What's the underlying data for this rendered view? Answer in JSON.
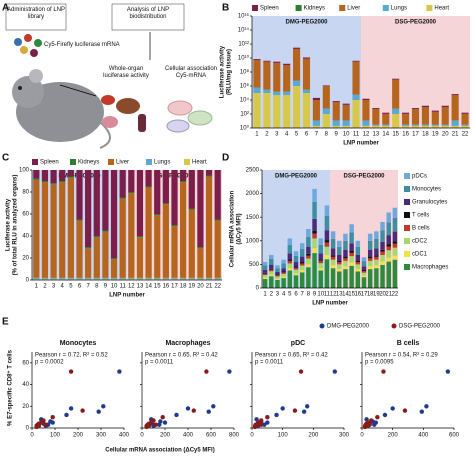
{
  "diagram": {
    "label": "A",
    "administration": "Administration of LNP library",
    "analysis": "Analysis of LNP biodistribution",
    "mrna": "Cy5-Firefly luciferase mRNA",
    "organ": "Whole-organ luciferase activity",
    "cellular": "Cellular association Cy5-mRNA"
  },
  "chart_data": [
    {
      "label": "B",
      "type": "bar",
      "stacked": true,
      "log_scale": true,
      "legend": "top",
      "x_label": "LNP number",
      "y_label": [
        "Luciferase activity",
        "(RLU/mg tissue)"
      ],
      "categories": [
        "1",
        "2",
        "3",
        "4",
        "5",
        "6",
        "7",
        "8",
        "9",
        "10",
        "11",
        "12",
        "13",
        "14",
        "15",
        "16",
        "17",
        "18",
        "19",
        "20",
        "21",
        "22"
      ],
      "shading": [
        {
          "label": "DMG-PEG2000",
          "color": "#c9d6f2",
          "count": 11
        },
        {
          "label": "DSG-PEG2000",
          "color": "#f5d5d8",
          "count": 11
        }
      ],
      "series": [
        {
          "name": "Spleen",
          "color": "#7b1f4a",
          "values": [
            2000000000.0,
            1000000000.0,
            1000000000.0,
            500000000.0,
            100000000000.0,
            4000000000.0,
            10000.0,
            200000.0,
            2000.0,
            1000.0,
            1000000000.0,
            5000.0,
            200,
            50,
            3000000.0,
            50,
            200,
            500,
            100,
            500,
            20000.0,
            50
          ]
        },
        {
          "name": "Kidneys",
          "color": "#2e7d32",
          "values": [
            1000000.0,
            500000.0,
            200000.0,
            100000.0,
            10000000.0,
            300000.0,
            10,
            1000,
            10,
            10,
            100000.0,
            10,
            1,
            1,
            1000,
            1,
            1,
            1,
            1,
            1,
            10,
            1
          ]
        },
        {
          "name": "Liver",
          "color": "#b5651d",
          "values": [
            5000000000.0,
            3000000000.0,
            2000000000.0,
            1000000000.0,
            200000000000.0,
            8000000000.0,
            10000.0,
            1000000.0,
            5000.0,
            2000.0,
            3000000000.0,
            10000.0,
            500,
            100,
            8000000.0,
            100,
            500,
            1000,
            200,
            1000,
            50000.0,
            100
          ]
        },
        {
          "name": "Lungs",
          "color": "#5aa9d0",
          "values": [
            500000.0,
            200000.0,
            100000.0,
            100000.0,
            5000000.0,
            200000.0,
            10,
            500,
            10,
            10,
            50000.0,
            10,
            1,
            1,
            500,
            1,
            1,
            1,
            1,
            1,
            10,
            1
          ]
        },
        {
          "name": "Heart",
          "color": "#d8c84a",
          "values": [
            100000.0,
            100000.0,
            50000.0,
            50000.0,
            1000000.0,
            100000.0,
            1,
            100,
            1,
            1,
            10000.0,
            1,
            1,
            1,
            100,
            1,
            1,
            1,
            1,
            1,
            1,
            1
          ]
        }
      ],
      "ylim": [
        1,
        1e+16
      ],
      "yticks": [
        {
          "value": 1,
          "label": "10⁰"
        },
        {
          "value": 100,
          "label": "10²"
        },
        {
          "value": 10000.0,
          "label": "10⁴"
        },
        {
          "value": 1000000.0,
          "label": "10⁶"
        },
        {
          "value": 100000000.0,
          "label": "10⁸"
        },
        {
          "value": 10000000000.0,
          "label": "10¹⁰"
        },
        {
          "value": 1000000000000.0,
          "label": "10¹²"
        },
        {
          "value": 100000000000000.0,
          "label": "10¹⁴"
        },
        {
          "value": 1e+16,
          "label": "10¹⁶"
        }
      ]
    },
    {
      "label": "C",
      "type": "bar",
      "stacked": true,
      "log_scale": false,
      "legend": "top",
      "x_label": "LNP number",
      "y_label": [
        "Luciferase activity",
        "(% of total RLU in analyzed organs)"
      ],
      "categories": [
        "1",
        "2",
        "3",
        "4",
        "5",
        "6",
        "7",
        "8",
        "9",
        "10",
        "11",
        "12",
        "13",
        "14",
        "15",
        "16",
        "17",
        "18",
        "19",
        "20",
        "21",
        "22"
      ],
      "shading": [
        {
          "label": "DMG-PEG2000",
          "color": "#c9d6f2",
          "count": 11
        },
        {
          "label": "DSG-PEG2000",
          "color": "#f5d5d8",
          "count": 11
        }
      ],
      "series": [
        {
          "name": "Spleen",
          "color": "#7b1f4a",
          "values": [
            8,
            10,
            12,
            10,
            6,
            45,
            70,
            60,
            55,
            80,
            25,
            20,
            60,
            15,
            40,
            30,
            50,
            10,
            35,
            70,
            5,
            45
          ]
        },
        {
          "name": "Kidneys",
          "color": "#2e7d32",
          "values": [
            1,
            1,
            1,
            1,
            1,
            1,
            1,
            1,
            1,
            1,
            1,
            1,
            1,
            1,
            1,
            1,
            1,
            1,
            1,
            1,
            1,
            1
          ]
        },
        {
          "name": "Liver",
          "color": "#b5651d",
          "values": [
            89,
            87,
            85,
            87,
            91,
            52,
            27,
            37,
            42,
            17,
            72,
            77,
            37,
            82,
            57,
            67,
            47,
            87,
            62,
            27,
            92,
            52
          ]
        },
        {
          "name": "Lungs",
          "color": "#5aa9d0",
          "values": [
            1,
            1,
            1,
            1,
            1,
            1,
            1,
            1,
            1,
            1,
            1,
            1,
            1,
            1,
            1,
            1,
            1,
            1,
            1,
            1,
            1,
            1
          ]
        },
        {
          "name": "Heart",
          "color": "#d8c84a",
          "values": [
            1,
            1,
            1,
            1,
            1,
            1,
            1,
            1,
            1,
            1,
            1,
            1,
            1,
            1,
            1,
            1,
            1,
            1,
            1,
            1,
            1,
            1
          ]
        }
      ],
      "ylim": [
        0,
        100
      ],
      "yticks": [
        0,
        20,
        40,
        60,
        80,
        100
      ]
    },
    {
      "label": "D",
      "type": "bar",
      "stacked": true,
      "log_scale": false,
      "legend": "right",
      "x_label": "LNP number",
      "y_label": [
        "Cellular mRNA association",
        "(ΔCy5 MFI)"
      ],
      "categories": [
        "1",
        "2",
        "3",
        "4",
        "5",
        "6",
        "7",
        "8",
        "9",
        "10",
        "11",
        "12",
        "13",
        "14",
        "15",
        "16",
        "17",
        "18",
        "19",
        "20",
        "21",
        "22"
      ],
      "shading": [
        {
          "label": "DMG-PEG2000",
          "color": "#c9d6f2",
          "count": 11
        },
        {
          "label": "DSG-PEG2000",
          "color": "#f5d5d8",
          "count": 11
        }
      ],
      "series": [
        {
          "name": "pDCs",
          "color": "#6fa8dc",
          "values": [
            70,
            85,
            60,
            80,
            140,
            100,
            125,
            165,
            275,
            135,
            225,
            160,
            130,
            150,
            175,
            130,
            80,
            150,
            160,
            180,
            210,
            215
          ]
        },
        {
          "name": "Monocytes",
          "color": "#3d8ea0",
          "values": [
            95,
            120,
            80,
            100,
            180,
            130,
            160,
            210,
            360,
            180,
            300,
            200,
            170,
            195,
            230,
            170,
            110,
            195,
            200,
            240,
            270,
            290
          ]
        },
        {
          "name": "Granulocytes",
          "color": "#4b2a7b",
          "values": [
            65,
            85,
            55,
            70,
            125,
            95,
            115,
            150,
            250,
            125,
            210,
            145,
            120,
            140,
            160,
            120,
            80,
            140,
            145,
            170,
            190,
            205
          ]
        },
        {
          "name": "T cells",
          "color": "#111111",
          "values": [
            15,
            20,
            15,
            20,
            30,
            25,
            30,
            40,
            60,
            30,
            50,
            35,
            30,
            35,
            40,
            30,
            20,
            35,
            35,
            40,
            50,
            50
          ]
        },
        {
          "name": "B cells",
          "color": "#c0392b",
          "values": [
            30,
            35,
            25,
            30,
            55,
            40,
            45,
            60,
            105,
            55,
            90,
            60,
            50,
            55,
            70,
            50,
            35,
            55,
            60,
            70,
            80,
            85
          ]
        },
        {
          "name": "cDC2",
          "color": "#a6d96a",
          "values": [
            55,
            70,
            50,
            60,
            100,
            80,
            95,
            125,
            210,
            105,
            175,
            120,
            100,
            115,
            135,
            100,
            65,
            115,
            120,
            140,
            160,
            170
          ]
        },
        {
          "name": "cDC1",
          "color": "#f0e442",
          "values": [
            30,
            35,
            25,
            30,
            50,
            40,
            50,
            60,
            100,
            50,
            90,
            60,
            50,
            60,
            70,
            50,
            30,
            60,
            60,
            70,
            80,
            85
          ]
        },
        {
          "name": "Macrophages",
          "color": "#2e8b3e",
          "values": [
            190,
            250,
            170,
            210,
            370,
            270,
            330,
            440,
            740,
            370,
            610,
            420,
            350,
            400,
            470,
            350,
            230,
            400,
            420,
            490,
            560,
            600
          ]
        }
      ],
      "ylim": [
        0,
        2500
      ],
      "yticks": [
        0,
        500,
        1000,
        1500,
        2000,
        2500
      ]
    },
    {
      "label": "E",
      "type": "scatter",
      "legend": "top-right",
      "x_label": "Cellular mRNA association (ΔCy5 MFI)",
      "y_label": "% E7-specific CD8⁺ T cells",
      "series": [
        {
          "name": "DMG-PEG2000",
          "color": "#1f3b8c"
        },
        {
          "name": "DSG-PEG2000",
          "color": "#8b1a1a"
        }
      ],
      "ylim": [
        0,
        70
      ],
      "yticks": [
        0,
        20,
        40,
        60
      ],
      "panels": [
        {
          "title": "Monocytes",
          "annotations": [
            "Pearson r = 0.72, R² = 0.52",
            "p = 0.0002"
          ],
          "xlim": [
            0,
            400
          ],
          "xticks": [
            0,
            100,
            200,
            300,
            400
          ],
          "points": [
            {
              "x": [
                60,
                90,
                40,
                70,
                150,
                310,
                170,
                80,
                380,
                290,
                50
              ],
              "values": [
                2,
                5,
                8,
                3,
                12,
                20,
                18,
                6,
                52,
                15,
                4
              ]
            },
            {
              "x": [
                20,
                60,
                30,
                90,
                40,
                170,
                50,
                30,
                20,
                220,
                25
              ],
              "values": [
                1,
                3,
                2,
                10,
                5,
                52,
                7,
                4,
                2,
                16,
                3
              ]
            }
          ]
        },
        {
          "title": "Macrophages",
          "annotations": [
            "Pearson r = 0.65, R² = 0.42",
            "p = 0.0011"
          ],
          "xlim": [
            0,
            800
          ],
          "xticks": [
            0,
            200,
            400,
            600,
            800
          ],
          "points": [
            {
              "x": [
                100,
                200,
                80,
                150,
                300,
                620,
                400,
                160,
                760,
                580,
                90
              ],
              "values": [
                2,
                5,
                8,
                3,
                12,
                20,
                18,
                6,
                52,
                15,
                4
              ]
            },
            {
              "x": [
                40,
                120,
                60,
                180,
                80,
                560,
                100,
                60,
                40,
                450,
                50
              ],
              "values": [
                1,
                3,
                2,
                10,
                5,
                52,
                7,
                4,
                2,
                16,
                3
              ]
            }
          ]
        },
        {
          "title": "pDC",
          "annotations": [
            "Pearson r = 0.65, R² = 0.42",
            "p = 0.0011"
          ],
          "xlim": [
            0,
            300
          ],
          "xticks": [
            0,
            100,
            200,
            300
          ],
          "points": [
            {
              "x": [
                20,
                50,
                15,
                40,
                80,
                180,
                100,
                30,
                270,
                170,
                25
              ],
              "values": [
                2,
                5,
                8,
                3,
                12,
                20,
                18,
                6,
                52,
                15,
                4
              ]
            },
            {
              "x": [
                10,
                30,
                15,
                50,
                20,
                160,
                30,
                20,
                10,
                140,
                12
              ],
              "values": [
                1,
                3,
                2,
                10,
                5,
                52,
                7,
                4,
                2,
                16,
                3
              ]
            }
          ]
        },
        {
          "title": "B cells",
          "annotations": [
            "Pearson r = 0.54, R² = 0.29",
            "p = 0.0095"
          ],
          "xlim": [
            0,
            600
          ],
          "xticks": [
            0,
            200,
            400,
            600
          ],
          "points": [
            {
              "x": [
                40,
                90,
                30,
                80,
                150,
                420,
                200,
                70,
                560,
                390,
                50
              ],
              "values": [
                2,
                5,
                8,
                3,
                12,
                20,
                18,
                6,
                52,
                15,
                4
              ]
            },
            {
              "x": [
                20,
                50,
                30,
                100,
                40,
                140,
                60,
                30,
                20,
                280,
                25
              ],
              "values": [
                1,
                3,
                2,
                10,
                5,
                52,
                7,
                4,
                2,
                16,
                3
              ]
            }
          ]
        }
      ]
    }
  ]
}
